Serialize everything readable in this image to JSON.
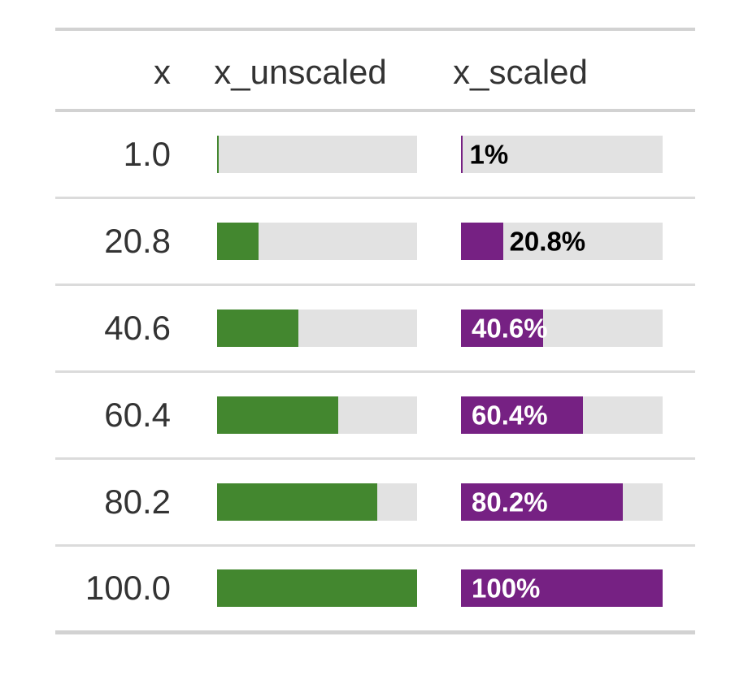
{
  "table": {
    "columns": {
      "x": {
        "label": "x"
      },
      "x_unscaled": {
        "label": "x_unscaled"
      },
      "x_scaled": {
        "label": "x_scaled"
      }
    },
    "rows": [
      {
        "x": "1.0",
        "unscaled_pct": 1,
        "scaled_pct": 1,
        "scaled_label": "1%",
        "label_position": "outside"
      },
      {
        "x": "20.8",
        "unscaled_pct": 20.8,
        "scaled_pct": 20.8,
        "scaled_label": "20.8%",
        "label_position": "outside"
      },
      {
        "x": "40.6",
        "unscaled_pct": 40.6,
        "scaled_pct": 40.6,
        "scaled_label": "40.6%",
        "label_position": "inside"
      },
      {
        "x": "60.4",
        "unscaled_pct": 60.4,
        "scaled_pct": 60.4,
        "scaled_label": "60.4%",
        "label_position": "inside"
      },
      {
        "x": "80.2",
        "unscaled_pct": 80.2,
        "scaled_pct": 80.2,
        "scaled_label": "80.2%",
        "label_position": "inside"
      },
      {
        "x": "100.0",
        "unscaled_pct": 100,
        "scaled_pct": 100,
        "scaled_label": "100%",
        "label_position": "inside"
      }
    ],
    "colors": {
      "unscaled_fill": "#43872F",
      "scaled_fill": "#762183",
      "track": "#E2E2E2",
      "label_inside": "#FFFFFF",
      "label_outside": "#000000",
      "border": "#D2D2D2",
      "row_divider": "#DBDBDB",
      "text": "#333333"
    }
  },
  "chart_data": {
    "type": "bar",
    "title": "",
    "xlabel": "",
    "ylabel": "",
    "categories": [
      "1.0",
      "20.8",
      "40.6",
      "60.4",
      "80.2",
      "100.0"
    ],
    "series": [
      {
        "name": "x_unscaled",
        "values": [
          1,
          20.8,
          40.6,
          60.4,
          80.2,
          100
        ]
      },
      {
        "name": "x_scaled",
        "values": [
          1,
          20.8,
          40.6,
          60.4,
          80.2,
          100
        ]
      }
    ],
    "value_labels": [
      "1%",
      "20.8%",
      "40.6%",
      "60.4%",
      "80.2%",
      "100%"
    ],
    "xlim": [
      0,
      100
    ],
    "grid": false,
    "legend_position": "none",
    "orientation": "horizontal"
  }
}
